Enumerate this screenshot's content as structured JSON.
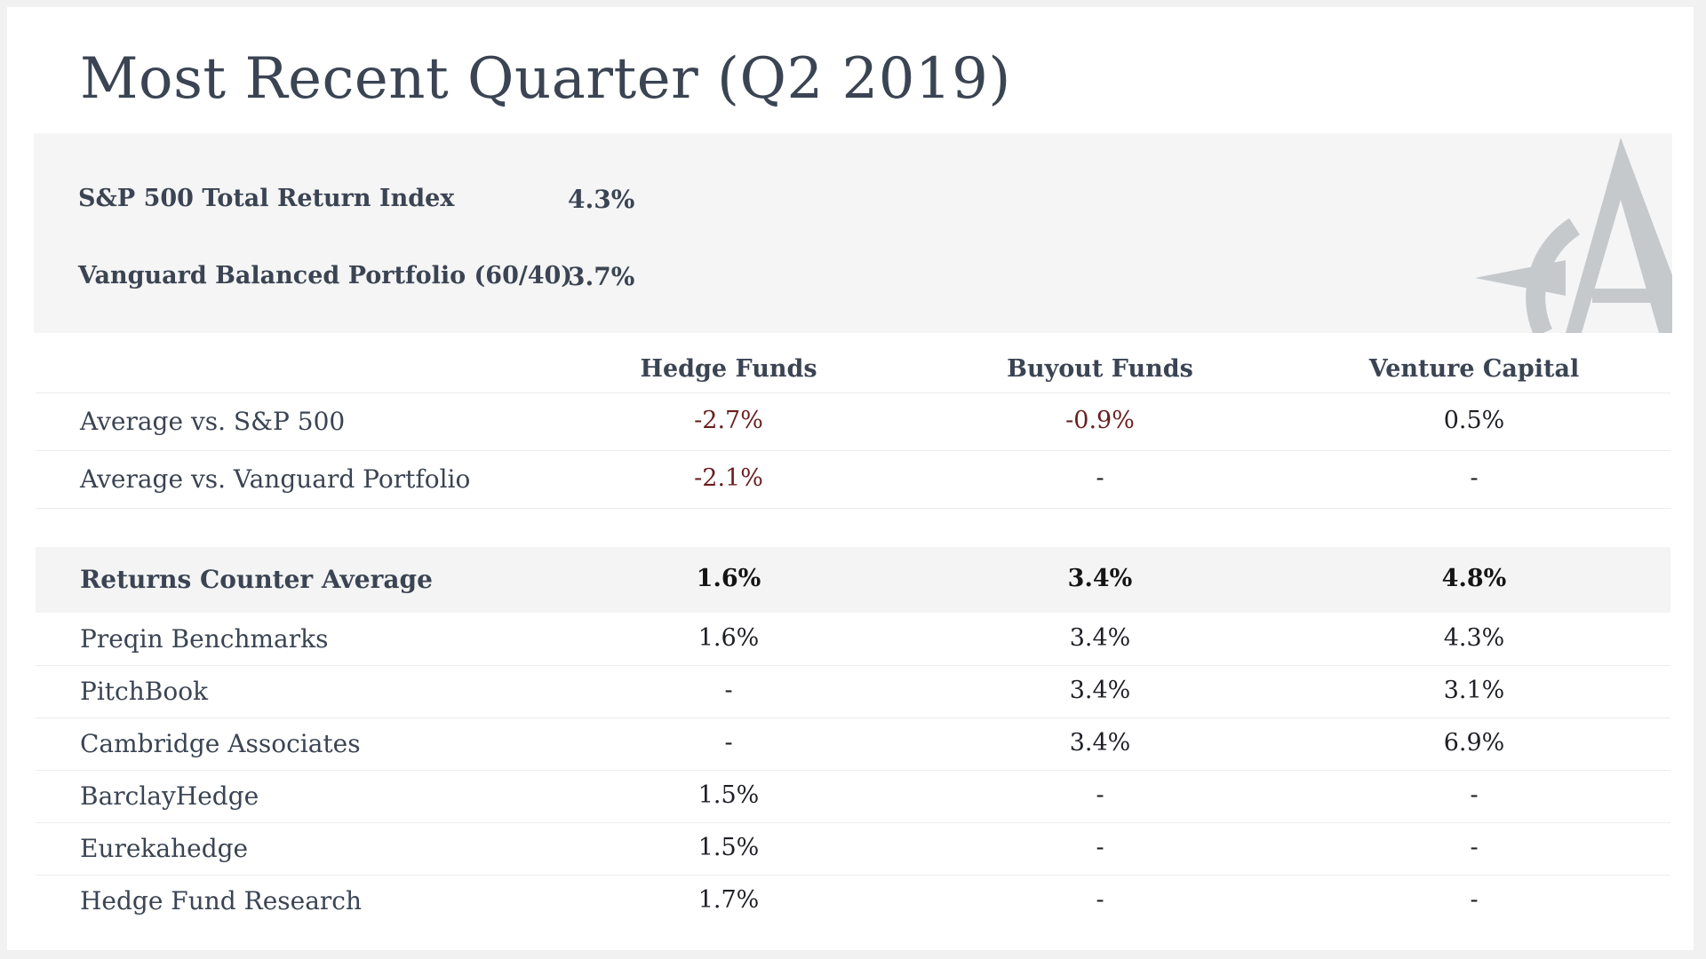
{
  "title": "Most Recent Quarter (Q2 2019)",
  "benchmarks": [
    {
      "label": "S&P 500 Total Return Index",
      "value": "4.3%"
    },
    {
      "label": "Vanguard Balanced Portfolio (60/40)",
      "value": "3.7%"
    }
  ],
  "logo": "compass-a-logo",
  "columns": [
    "Hedge Funds",
    "Buyout Funds",
    "Venture Capital"
  ],
  "comparison_rows": [
    {
      "label": "Average vs. S&P 500",
      "values": [
        "-2.7%",
        "-0.9%",
        "0.5%"
      ]
    },
    {
      "label": "Average vs. Vanguard Portfolio",
      "values": [
        "-2.1%",
        "-",
        "-"
      ]
    }
  ],
  "average_row": {
    "label": "Returns Counter Average",
    "values": [
      "1.6%",
      "3.4%",
      "4.8%"
    ]
  },
  "source_rows": [
    {
      "label": "Preqin Benchmarks",
      "values": [
        "1.6%",
        "3.4%",
        "4.3%"
      ]
    },
    {
      "label": "PitchBook",
      "values": [
        "-",
        "3.4%",
        "3.1%"
      ]
    },
    {
      "label": "Cambridge Associates",
      "values": [
        "-",
        "3.4%",
        "6.9%"
      ]
    },
    {
      "label": "BarclayHedge",
      "values": [
        "1.5%",
        "-",
        "-"
      ]
    },
    {
      "label": "Eurekahedge",
      "values": [
        "1.5%",
        "-",
        "-"
      ]
    },
    {
      "label": "Hedge Fund Research",
      "values": [
        "1.7%",
        "-",
        "-"
      ]
    }
  ],
  "colors": {
    "negative": "#6a1f1f",
    "text": "#3b4453",
    "panel": "#f5f5f5"
  }
}
